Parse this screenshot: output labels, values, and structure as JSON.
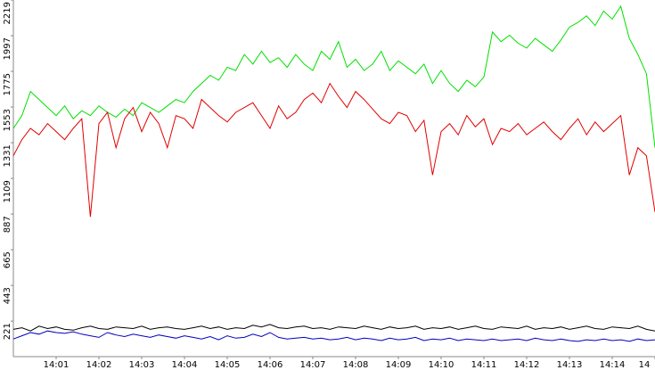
{
  "chart_data": {
    "type": "line",
    "categories": [
      null,
      null,
      null,
      null,
      null,
      "14:01",
      null,
      null,
      null,
      null,
      "14:02",
      null,
      null,
      null,
      null,
      "14:03",
      null,
      null,
      null,
      null,
      "14:04",
      null,
      null,
      null,
      null,
      "14:05",
      null,
      null,
      null,
      null,
      "14:06",
      null,
      null,
      null,
      null,
      "14:07",
      null,
      null,
      null,
      null,
      "14:08",
      null,
      null,
      null,
      null,
      "14:09",
      null,
      null,
      null,
      null,
      "14:10",
      null,
      null,
      null,
      null,
      "14:11",
      null,
      null,
      null,
      null,
      "14:12",
      null,
      null,
      null,
      null,
      "14:13",
      null,
      null,
      null,
      null,
      "14:14",
      null,
      null,
      null,
      null,
      "14"
    ],
    "ylim": [
      0,
      2219
    ],
    "yticks": [
      221,
      443,
      665,
      887,
      1109,
      1331,
      1553,
      1775,
      1997,
      2219
    ],
    "series": [
      {
        "color": "#00e000",
        "values": [
          1420,
          1500,
          1650,
          1600,
          1550,
          1500,
          1560,
          1480,
          1530,
          1500,
          1560,
          1520,
          1490,
          1540,
          1500,
          1580,
          1550,
          1520,
          1560,
          1600,
          1580,
          1650,
          1700,
          1750,
          1720,
          1800,
          1780,
          1880,
          1820,
          1900,
          1830,
          1860,
          1800,
          1880,
          1820,
          1780,
          1900,
          1850,
          1960,
          1800,
          1850,
          1780,
          1820,
          1900,
          1780,
          1840,
          1800,
          1760,
          1820,
          1700,
          1780,
          1700,
          1650,
          1720,
          1680,
          1740,
          2020,
          1960,
          2000,
          1950,
          1920,
          1980,
          1940,
          1900,
          1970,
          2050,
          2080,
          2120,
          2060,
          2150,
          2100,
          2180,
          1980,
          1880,
          1760,
          1300
        ]
      },
      {
        "color": "#e00000",
        "values": [
          1250,
          1350,
          1420,
          1380,
          1450,
          1400,
          1350,
          1420,
          1480,
          870,
          1450,
          1520,
          1300,
          1480,
          1550,
          1400,
          1520,
          1450,
          1300,
          1500,
          1480,
          1420,
          1600,
          1550,
          1500,
          1460,
          1520,
          1550,
          1580,
          1500,
          1420,
          1560,
          1480,
          1520,
          1600,
          1640,
          1580,
          1700,
          1620,
          1550,
          1650,
          1600,
          1540,
          1480,
          1450,
          1520,
          1500,
          1400,
          1470,
          1130,
          1400,
          1450,
          1380,
          1500,
          1430,
          1480,
          1320,
          1420,
          1400,
          1450,
          1380,
          1420,
          1460,
          1400,
          1350,
          1420,
          1480,
          1380,
          1460,
          1400,
          1450,
          1500,
          1130,
          1300,
          1250,
          900
        ]
      },
      {
        "color": "#000000",
        "values": [
          170,
          180,
          160,
          190,
          175,
          185,
          170,
          165,
          180,
          190,
          175,
          170,
          185,
          180,
          175,
          190,
          170,
          180,
          185,
          175,
          170,
          180,
          190,
          175,
          185,
          170,
          180,
          175,
          195,
          185,
          200,
          180,
          175,
          185,
          190,
          175,
          180,
          170,
          185,
          180,
          175,
          190,
          180,
          170,
          185,
          175,
          180,
          190,
          170,
          180,
          175,
          185,
          170,
          180,
          190,
          175,
          170,
          185,
          180,
          175,
          190,
          170,
          180,
          175,
          185,
          170,
          180,
          190,
          175,
          170,
          185,
          180,
          175,
          190,
          170,
          160
        ]
      },
      {
        "color": "#0000c0",
        "values": [
          110,
          130,
          150,
          140,
          160,
          150,
          145,
          155,
          140,
          130,
          120,
          150,
          135,
          125,
          140,
          130,
          120,
          135,
          125,
          115,
          130,
          120,
          110,
          125,
          105,
          130,
          115,
          120,
          140,
          125,
          150,
          120,
          110,
          115,
          120,
          110,
          115,
          105,
          110,
          120,
          105,
          115,
          110,
          100,
          115,
          105,
          110,
          120,
          100,
          110,
          105,
          115,
          100,
          110,
          105,
          100,
          110,
          100,
          105,
          110,
          100,
          115,
          105,
          100,
          110,
          100,
          95,
          105,
          100,
          110,
          100,
          105,
          95,
          110,
          100,
          105
        ]
      }
    ]
  }
}
